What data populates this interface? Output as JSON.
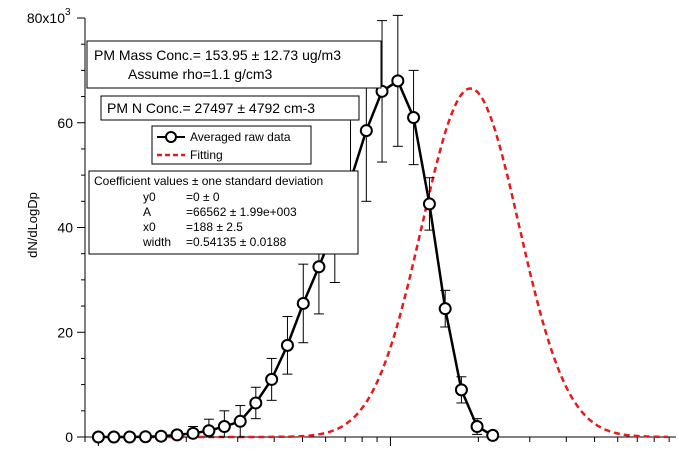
{
  "chart_data": {
    "type": "line",
    "title": "",
    "xlabel": "",
    "ylabel": "dN/dLogDp",
    "y_axis": {
      "min": 0,
      "max": 80000,
      "ticks": [
        0,
        20000,
        40000,
        60000,
        80000
      ],
      "tick_labels": [
        "0",
        "20",
        "40",
        "60",
        "80x10"
      ],
      "top_exponent": "3"
    },
    "x_axis": {
      "scale": "log",
      "min": 9,
      "max": 950,
      "tick_labels_visible": false
    },
    "grid": false,
    "legend_position": "top-left",
    "series": [
      {
        "name": "Averaged raw data",
        "color": "#000000",
        "marker": "open-circle",
        "x": [
          10,
          11.3,
          12.8,
          14.5,
          16.4,
          18.6,
          21.1,
          23.9,
          27,
          30.6,
          34.6,
          39.2,
          44.4,
          50.3,
          56.9,
          64.5,
          73,
          82.7,
          93.6,
          106,
          120,
          136,
          154,
          175,
          198,
          224,
          254,
          288,
          326,
          369,
          418,
          473,
          536,
          660,
          840
        ],
        "y": [
          0,
          0,
          0,
          50,
          150,
          400,
          700,
          1200,
          2000,
          3000,
          6500,
          11000,
          17500,
          25500,
          32500,
          40000,
          49000,
          58500,
          66000,
          68000,
          61000,
          44500,
          24500,
          9000,
          2000,
          300,
          null,
          null,
          null,
          null,
          null,
          null,
          null,
          null,
          null
        ],
        "error": [
          0,
          0,
          0,
          100,
          300,
          800,
          1300,
          2200,
          3000,
          3000,
          3000,
          4000,
          5500,
          7500,
          9000,
          10500,
          12500,
          13500,
          13500,
          12500,
          9000,
          5000,
          3500,
          2500,
          1500,
          800,
          null,
          null,
          null,
          null,
          null,
          null,
          null,
          null,
          null
        ]
      },
      {
        "name": "Fitting",
        "color": "#e8191c",
        "line_style": "dashed"
      }
    ],
    "fit": {
      "y0": 0,
      "A": 66562,
      "x0": 188,
      "width": 0.54135
    }
  },
  "annotations": {
    "mass_line1": "PM Mass Conc.= 153.95 ± 12.73 ug/m3",
    "mass_line2": "Assume rho=1.1 g/cm3",
    "number_conc": "PM N Conc.= 27497 ± 4792 cm-3",
    "legend_raw": "Averaged raw data",
    "legend_fit": "Fitting",
    "coef_header": "Coefficient values ± one standard deviation",
    "coef_rows": [
      {
        "name": "y0",
        "value": "=0 ± 0"
      },
      {
        "name": "A",
        "value": "=66562 ± 1.99e+003"
      },
      {
        "name": "x0",
        "value": "=188 ± 2.5"
      },
      {
        "name": "width",
        "value": "=0.54135 ± 0.0188"
      }
    ]
  }
}
